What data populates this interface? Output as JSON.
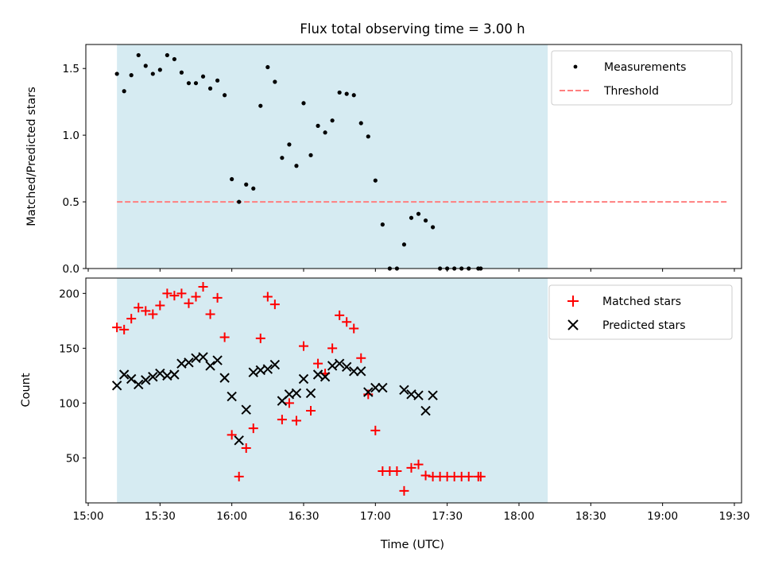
{
  "title": "Flux total observing time = 3.00 h",
  "xlabel": "Time (UTC)",
  "x_tick_labels": [
    "15:00",
    "15:30",
    "16:00",
    "16:30",
    "17:00",
    "17:30",
    "18:00",
    "18:30",
    "19:00",
    "19:30"
  ],
  "colors": {
    "shade": "#add8e6",
    "matched": "#ff0000",
    "predicted": "#000000",
    "threshold": "#ff7f7f"
  },
  "chart_data": [
    {
      "type": "scatter",
      "ylabel": "Matched/Predicted stars",
      "xlim": [
        "14:59",
        "19:33"
      ],
      "ylim": [
        0.0,
        1.68
      ],
      "y_tick_labels": [
        "0.0",
        "0.5",
        "1.0",
        "1.5"
      ],
      "shaded_span": [
        "15:12",
        "18:12"
      ],
      "legend": {
        "position": "top-right",
        "entries": [
          "Measurements",
          "Threshold"
        ]
      },
      "threshold": {
        "name": "Threshold",
        "value": 0.5,
        "x": [
          "15:12",
          "19:27"
        ]
      },
      "series": [
        {
          "name": "Measurements",
          "marker": "dot",
          "points": [
            [
              "15:12",
              1.46
            ],
            [
              "15:15",
              1.33
            ],
            [
              "15:18",
              1.45
            ],
            [
              "15:21",
              1.6
            ],
            [
              "15:24",
              1.52
            ],
            [
              "15:27",
              1.46
            ],
            [
              "15:30",
              1.49
            ],
            [
              "15:33",
              1.6
            ],
            [
              "15:36",
              1.57
            ],
            [
              "15:39",
              1.47
            ],
            [
              "15:42",
              1.39
            ],
            [
              "15:45",
              1.39
            ],
            [
              "15:48",
              1.44
            ],
            [
              "15:51",
              1.35
            ],
            [
              "15:54",
              1.41
            ],
            [
              "15:57",
              1.3
            ],
            [
              "16:00",
              0.67
            ],
            [
              "16:03",
              0.5
            ],
            [
              "16:06",
              0.63
            ],
            [
              "16:09",
              0.6
            ],
            [
              "16:12",
              1.22
            ],
            [
              "16:15",
              1.51
            ],
            [
              "16:18",
              1.4
            ],
            [
              "16:21",
              0.83
            ],
            [
              "16:24",
              0.93
            ],
            [
              "16:27",
              0.77
            ],
            [
              "16:30",
              1.24
            ],
            [
              "16:33",
              0.85
            ],
            [
              "16:36",
              1.07
            ],
            [
              "16:39",
              1.02
            ],
            [
              "16:42",
              1.11
            ],
            [
              "16:45",
              1.32
            ],
            [
              "16:48",
              1.31
            ],
            [
              "16:51",
              1.3
            ],
            [
              "16:54",
              1.09
            ],
            [
              "16:57",
              0.99
            ],
            [
              "17:00",
              0.66
            ],
            [
              "17:03",
              0.33
            ],
            [
              "17:06",
              0.0
            ],
            [
              "17:09",
              0.0
            ],
            [
              "17:12",
              0.18
            ],
            [
              "17:15",
              0.38
            ],
            [
              "17:18",
              0.41
            ],
            [
              "17:21",
              0.36
            ],
            [
              "17:24",
              0.31
            ],
            [
              "17:27",
              0.0
            ],
            [
              "17:30",
              0.0
            ],
            [
              "17:33",
              0.0
            ],
            [
              "17:36",
              0.0
            ],
            [
              "17:39",
              0.0
            ],
            [
              "17:43",
              0.0
            ],
            [
              "17:44",
              0.0
            ]
          ]
        }
      ]
    },
    {
      "type": "scatter",
      "ylabel": "Count",
      "xlim": [
        "14:59",
        "19:33"
      ],
      "ylim": [
        9,
        214
      ],
      "y_tick_labels": [
        "50",
        "100",
        "150",
        "200"
      ],
      "shaded_span": [
        "15:12",
        "18:12"
      ],
      "legend": {
        "position": "top-right",
        "entries": [
          "Matched stars",
          "Predicted stars"
        ]
      },
      "series": [
        {
          "name": "Matched stars",
          "marker": "plus",
          "points": [
            [
              "15:12",
              169
            ],
            [
              "15:15",
              167
            ],
            [
              "15:18",
              177
            ],
            [
              "15:21",
              187
            ],
            [
              "15:24",
              184
            ],
            [
              "15:27",
              181
            ],
            [
              "15:30",
              189
            ],
            [
              "15:33",
              200
            ],
            [
              "15:36",
              198
            ],
            [
              "15:39",
              200
            ],
            [
              "15:42",
              191
            ],
            [
              "15:45",
              197
            ],
            [
              "15:48",
              206
            ],
            [
              "15:51",
              181
            ],
            [
              "15:54",
              196
            ],
            [
              "15:57",
              160
            ],
            [
              "16:00",
              71
            ],
            [
              "16:03",
              33
            ],
            [
              "16:06",
              59
            ],
            [
              "16:09",
              77
            ],
            [
              "16:12",
              159
            ],
            [
              "16:15",
              197
            ],
            [
              "16:18",
              190
            ],
            [
              "16:21",
              85
            ],
            [
              "16:24",
              100
            ],
            [
              "16:27",
              84
            ],
            [
              "16:30",
              152
            ],
            [
              "16:33",
              93
            ],
            [
              "16:36",
              136
            ],
            [
              "16:39",
              127
            ],
            [
              "16:42",
              150
            ],
            [
              "16:45",
              180
            ],
            [
              "16:48",
              174
            ],
            [
              "16:51",
              168
            ],
            [
              "16:54",
              141
            ],
            [
              "16:57",
              108
            ],
            [
              "17:00",
              75
            ],
            [
              "17:03",
              38
            ],
            [
              "17:06",
              38
            ],
            [
              "17:09",
              38
            ],
            [
              "17:12",
              20
            ],
            [
              "17:15",
              41
            ],
            [
              "17:18",
              44
            ],
            [
              "17:21",
              34
            ],
            [
              "17:24",
              33
            ],
            [
              "17:27",
              33
            ],
            [
              "17:30",
              33
            ],
            [
              "17:33",
              33
            ],
            [
              "17:36",
              33
            ],
            [
              "17:39",
              33
            ],
            [
              "17:43",
              33
            ],
            [
              "17:44",
              33
            ]
          ]
        },
        {
          "name": "Predicted stars",
          "marker": "x",
          "points": [
            [
              "15:12",
              116
            ],
            [
              "15:15",
              126
            ],
            [
              "15:18",
              122
            ],
            [
              "15:21",
              117
            ],
            [
              "15:24",
              121
            ],
            [
              "15:27",
              124
            ],
            [
              "15:30",
              127
            ],
            [
              "15:33",
              125
            ],
            [
              "15:36",
              126
            ],
            [
              "15:39",
              136
            ],
            [
              "15:42",
              137
            ],
            [
              "15:45",
              141
            ],
            [
              "15:48",
              142
            ],
            [
              "15:51",
              134
            ],
            [
              "15:54",
              139
            ],
            [
              "15:57",
              123
            ],
            [
              "16:00",
              106
            ],
            [
              "16:03",
              66
            ],
            [
              "16:06",
              94
            ],
            [
              "16:09",
              128
            ],
            [
              "16:12",
              130
            ],
            [
              "16:15",
              131
            ],
            [
              "16:18",
              135
            ],
            [
              "16:21",
              102
            ],
            [
              "16:24",
              108
            ],
            [
              "16:27",
              109
            ],
            [
              "16:30",
              122
            ],
            [
              "16:33",
              109
            ],
            [
              "16:36",
              126
            ],
            [
              "16:39",
              124
            ],
            [
              "16:42",
              134
            ],
            [
              "16:45",
              136
            ],
            [
              "16:48",
              133
            ],
            [
              "16:51",
              129
            ],
            [
              "16:54",
              129
            ],
            [
              "16:57",
              110
            ],
            [
              "17:00",
              114
            ],
            [
              "17:03",
              114
            ],
            [
              "17:12",
              112
            ],
            [
              "17:15",
              108
            ],
            [
              "17:18",
              107
            ],
            [
              "17:21",
              93
            ],
            [
              "17:24",
              107
            ]
          ]
        }
      ]
    }
  ]
}
